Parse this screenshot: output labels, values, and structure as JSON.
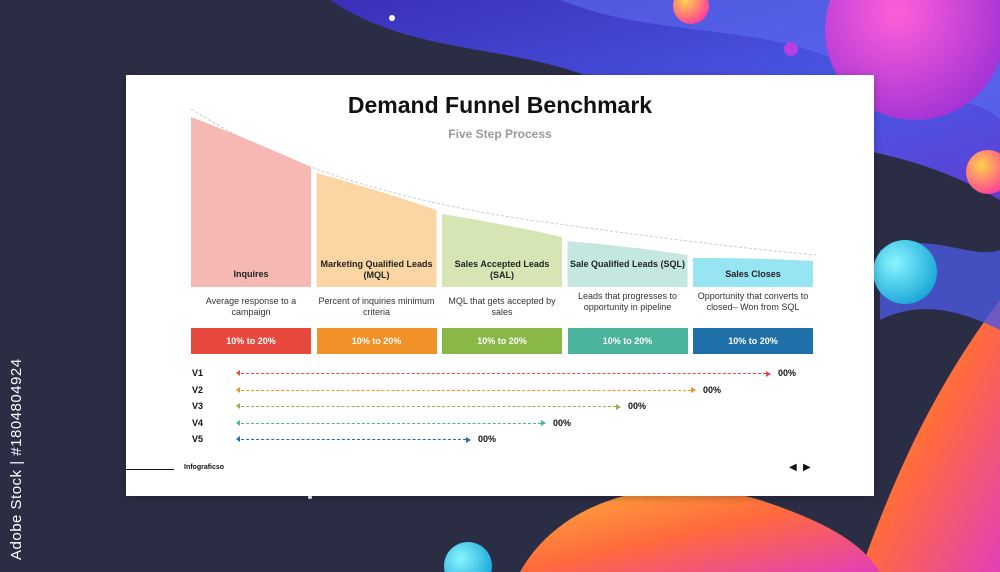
{
  "watermark": "Adobe Stock | #1804804924",
  "slide": {
    "title": "Demand Funnel Benchmark",
    "subtitle": "Five Step Process"
  },
  "stages": [
    {
      "label": "Inquires",
      "desc": "Average response to a campaign",
      "pct": "10% to 20%",
      "fill": "#f5b8b2",
      "accent": "#e8493f"
    },
    {
      "label": "Marketing Qualified Leads (MQL)",
      "desc": "Percent of inquiries minimum criteria",
      "pct": "10% to 20%",
      "fill": "#fbd5a4",
      "accent": "#f19127"
    },
    {
      "label": "Sales Accepted Leads (SAL)",
      "desc": "MQL that gets accepted by sales",
      "pct": "10% to 20%",
      "fill": "#d5e5b3",
      "accent": "#8ab847"
    },
    {
      "label": "Sale Qualified Leads (SQL)",
      "desc": "Leads that progresses to opportunity in pipeline",
      "pct": "10% to 20%",
      "fill": "#c4e8df",
      "accent": "#4bb49c"
    },
    {
      "label": "Sales Closes",
      "desc": "Opportunity that converts to closed– Won from SQL",
      "pct": "10% to 20%",
      "fill": "#97e4f2",
      "accent": "#1f6fa8"
    }
  ],
  "versions": [
    {
      "label": "V1",
      "value": "00%",
      "color": "#e8493f"
    },
    {
      "label": "V2",
      "value": "00%",
      "color": "#f19127"
    },
    {
      "label": "V3",
      "value": "00%",
      "color": "#8ab847"
    },
    {
      "label": "V4",
      "value": "00%",
      "color": "#4bb49c"
    },
    {
      "label": "V5",
      "value": "00%",
      "color": "#1f6fa8"
    }
  ],
  "footer": {
    "brand": "Infograficso",
    "prev_icon": "arrow-left-icon",
    "next_icon": "arrow-right-icon"
  },
  "colors": {
    "background_dark": "#2a2d44",
    "background_blue": "#3b46d8",
    "background_magenta": "#d23fd6",
    "background_orange": "#ff7a3c"
  }
}
